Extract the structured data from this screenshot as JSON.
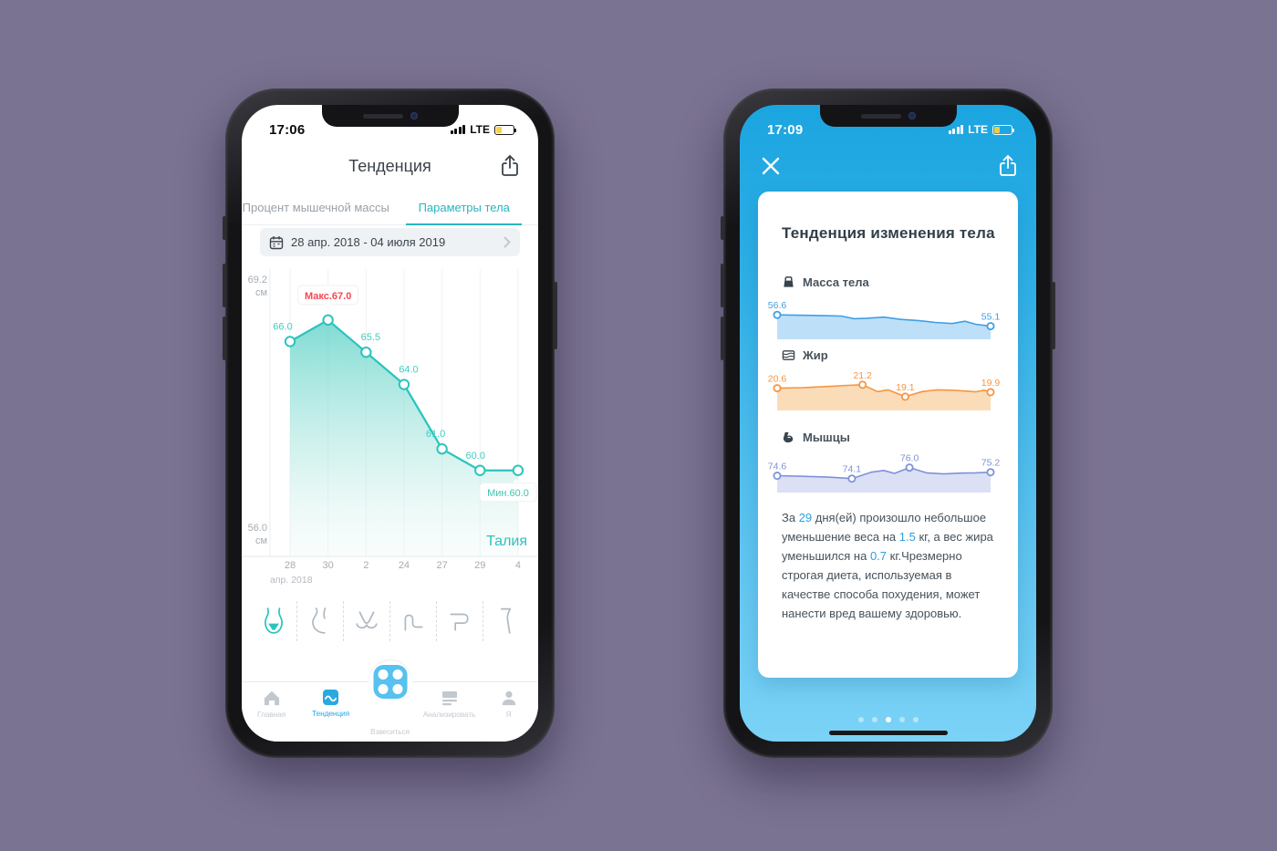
{
  "scene": {
    "background_color": "#7B7392"
  },
  "left_phone": {
    "status": {
      "time": "17:06",
      "network": "LTE"
    },
    "header": {
      "title": "Тенденция"
    },
    "tabs": [
      {
        "label": "Процент мышечной массы",
        "active": false
      },
      {
        "label": "Параметры тела",
        "active": true
      }
    ],
    "date_picker": {
      "label": "28 апр. 2018 - 04 июля 2019"
    },
    "body_parts": [
      {
        "id": "waist",
        "active": true
      },
      {
        "id": "hip",
        "active": false
      },
      {
        "id": "chest",
        "active": false
      },
      {
        "id": "arm",
        "active": false
      },
      {
        "id": "thigh",
        "active": false
      },
      {
        "id": "calf",
        "active": false
      }
    ],
    "tab_bar": [
      {
        "label": "Главная",
        "active": false
      },
      {
        "label": "Тенденция",
        "active": true
      },
      {
        "label": "Взвеситься",
        "active": false
      },
      {
        "label": "Анализировать",
        "active": false
      },
      {
        "label": "Я",
        "active": false
      }
    ]
  },
  "right_phone": {
    "status": {
      "time": "17:09",
      "network": "LTE"
    },
    "card": {
      "title": "Тенденция изменения тела",
      "sections": [
        {
          "label": "Масса тела"
        },
        {
          "label": "Жир"
        },
        {
          "label": "Мышцы"
        }
      ],
      "summary_segments": [
        {
          "text": "За ",
          "highlight": false
        },
        {
          "text": "29",
          "highlight": true
        },
        {
          "text": " дня(ей) произошло небольшое уменьшение веса на ",
          "highlight": false
        },
        {
          "text": "1.5",
          "highlight": true
        },
        {
          "text": " кг, а вес жира уменьшился на ",
          "highlight": false
        },
        {
          "text": "0.7",
          "highlight": true
        },
        {
          "text": " кг.Чрезмерно строгая диета, используемая в качестве способа похудения, может нанести вред вашему здоровью.",
          "highlight": false
        }
      ]
    },
    "pagination": {
      "count": 5,
      "active_index": 2
    }
  },
  "chart_data": [
    {
      "type": "area",
      "title": "Талия",
      "unit": "см",
      "x_labels": [
        "28",
        "30",
        "2",
        "24",
        "27",
        "29",
        "4"
      ],
      "x_note": "апр. 2018",
      "values": [
        66.0,
        67.0,
        65.5,
        64.0,
        61.0,
        60.0,
        60.0
      ],
      "point_labels": [
        "66.0",
        "",
        "65.5",
        "64.0",
        "61.0",
        "60.0",
        ""
      ],
      "max_tooltip": "Макс.67.0",
      "max_index": 1,
      "min_tooltip": "Мин.60.0",
      "min_index": 6,
      "ylim": [
        56.0,
        69.2
      ],
      "y_axis_top": "69.2",
      "y_axis_bottom": "56.0",
      "y_axis_unit": "см",
      "line_color": "#2BC4BE",
      "label_color": "#43CBC0",
      "max_color": "#F5464F",
      "min_color": "#3FC3B3",
      "grid": true,
      "legend_position": "bottom-right"
    },
    {
      "type": "area",
      "title": "Масса тела",
      "x": [
        0,
        0.1,
        0.22,
        0.3,
        0.36,
        0.42,
        0.5,
        0.58,
        0.66,
        0.74,
        0.82,
        0.88,
        0.93,
        1.0
      ],
      "values": [
        56.6,
        56.55,
        56.5,
        56.45,
        56.1,
        56.15,
        56.3,
        56.0,
        55.85,
        55.6,
        55.45,
        55.75,
        55.35,
        55.1
      ],
      "markers": [
        {
          "index": 0,
          "label": "56.6"
        },
        {
          "index": 13,
          "label": "55.1"
        }
      ],
      "ylim": [
        54.2,
        57.6
      ],
      "line_color": "#3F9FE5",
      "fill_color": "#BDE0F8"
    },
    {
      "type": "area",
      "title": "Жир",
      "x": [
        0,
        0.12,
        0.24,
        0.33,
        0.4,
        0.47,
        0.52,
        0.6,
        0.68,
        0.75,
        0.82,
        0.88,
        0.93,
        0.97,
        1.0
      ],
      "values": [
        20.6,
        20.7,
        20.9,
        21.1,
        21.2,
        20.0,
        20.3,
        19.1,
        20.0,
        20.3,
        20.25,
        20.1,
        19.95,
        20.25,
        19.9
      ],
      "markers": [
        {
          "index": 0,
          "label": "20.6"
        },
        {
          "index": 4,
          "label": "21.2"
        },
        {
          "index": 7,
          "label": "19.1"
        },
        {
          "index": 14,
          "label": "19.9"
        }
      ],
      "ylim": [
        17.8,
        22.3
      ],
      "line_color": "#F6953F",
      "fill_color": "#FBDCB9"
    },
    {
      "type": "area",
      "title": "Мышцы",
      "x": [
        0,
        0.12,
        0.24,
        0.35,
        0.44,
        0.5,
        0.55,
        0.62,
        0.7,
        0.78,
        0.86,
        0.93,
        1.0
      ],
      "values": [
        74.6,
        74.5,
        74.35,
        74.1,
        75.2,
        75.5,
        75.0,
        76.0,
        75.1,
        74.9,
        75.05,
        75.1,
        75.2
      ],
      "markers": [
        {
          "index": 0,
          "label": "74.6"
        },
        {
          "index": 3,
          "label": "74.1"
        },
        {
          "index": 7,
          "label": "76.0"
        },
        {
          "index": 12,
          "label": "75.2"
        }
      ],
      "ylim": [
        72.8,
        77.2
      ],
      "line_color": "#7E92D8",
      "fill_color": "#DBE0F5"
    }
  ]
}
